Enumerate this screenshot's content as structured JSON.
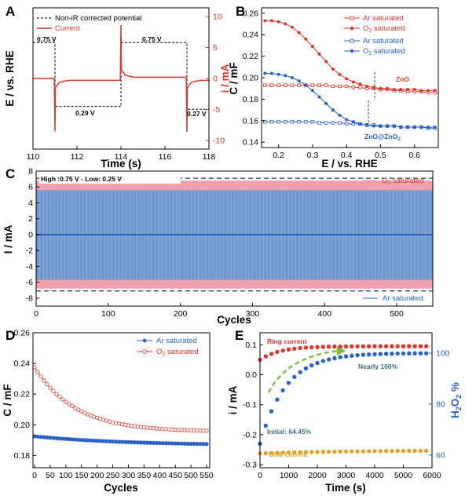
{
  "colors": {
    "red": "#d9382b",
    "blue": "#2a62c5",
    "orange": "#e0a426",
    "pink": "#f0a0ac",
    "steel": "#6e98cf",
    "green": "#7cbb3a",
    "teal": "#3c6e7c"
  },
  "chart_data": [
    {
      "panel": "A",
      "type": "line",
      "xlabel": "Time (s)",
      "ylabel": "E / vs. RHE",
      "ylabel_right": "i / mA",
      "xlim": [
        110,
        118
      ],
      "ylim_right": [
        -11,
        11
      ],
      "x_ticks": [
        "110",
        "112",
        "114",
        "116",
        "118"
      ],
      "y_right_ticks": [
        "10",
        "5",
        "0",
        "-5",
        "-10"
      ],
      "legend": [
        "Non-iR corrected potential",
        "Current"
      ],
      "annotations": [
        "0.75 V",
        "0.29 V",
        "0.75 V",
        "0.27 V"
      ],
      "series": [
        {
          "name": "Non-iR corrected potential",
          "style": "dashed",
          "x": [
            110,
            111,
            111,
            114,
            114,
            117,
            117,
            118
          ],
          "y": [
            0.75,
            0.75,
            0.29,
            0.29,
            0.75,
            0.75,
            0.27,
            0.27
          ]
        },
        {
          "name": "Current",
          "axis": "right",
          "x": [
            110,
            110.97,
            111.0,
            111.02,
            111.2,
            111.6,
            113.97,
            114.0,
            114.02,
            114.2,
            114.6,
            116.97,
            117.0,
            117.02,
            117.2,
            117.6,
            118
          ],
          "y": [
            0,
            0,
            -8.5,
            -1.5,
            -0.6,
            -0.3,
            -0.3,
            8.6,
            1.4,
            0.5,
            0.2,
            0.2,
            -8.6,
            -1.5,
            -0.6,
            -0.3,
            -0.3
          ]
        }
      ]
    },
    {
      "panel": "B",
      "type": "line",
      "xlabel": "E / vs. RHE",
      "ylabel": "C / mF",
      "xlim": [
        0.15,
        0.67
      ],
      "ylim": [
        0.135,
        0.265
      ],
      "x_ticks": [
        "0.2",
        "0.3",
        "0.4",
        "0.5",
        "0.6"
      ],
      "y_ticks": [
        "0.26",
        "0.24",
        "0.22",
        "0.20",
        "0.18",
        "0.16",
        "0.14"
      ],
      "legend_entries": [
        {
          "pre": "Ar saturated",
          "sub": "",
          "post": ""
        },
        {
          "pre": "O",
          "sub": "2",
          "post": " saturated"
        },
        {
          "pre": "Ar saturated",
          "sub": "",
          "post": ""
        },
        {
          "pre": "O",
          "sub": "2",
          "post": " saturated"
        }
      ],
      "label_zno": "ZnO",
      "label_core": {
        "pre": "ZnO@ZnO",
        "sub": "2",
        "post": ""
      },
      "x": [
        0.16,
        0.18,
        0.2,
        0.22,
        0.24,
        0.26,
        0.28,
        0.3,
        0.32,
        0.34,
        0.36,
        0.38,
        0.4,
        0.42,
        0.44,
        0.46,
        0.48,
        0.5,
        0.52,
        0.54,
        0.56,
        0.58,
        0.6,
        0.62,
        0.64,
        0.66
      ],
      "series": [
        {
          "name": "Ar saturated (ZnO)",
          "values": [
            0.193,
            0.193,
            0.193,
            0.193,
            0.193,
            0.193,
            0.193,
            0.193,
            0.193,
            0.193,
            0.192,
            0.192,
            0.192,
            0.191,
            0.191,
            0.19,
            0.19,
            0.189,
            0.189,
            0.188,
            0.188,
            0.187,
            0.187,
            0.187,
            0.186,
            0.186
          ]
        },
        {
          "name": "O2 saturated (ZnO)",
          "values": [
            0.253,
            0.253,
            0.252,
            0.25,
            0.247,
            0.242,
            0.236,
            0.229,
            0.222,
            0.215,
            0.208,
            0.203,
            0.199,
            0.196,
            0.194,
            0.192,
            0.191,
            0.19,
            0.19,
            0.189,
            0.189,
            0.189,
            0.189,
            0.188,
            0.188,
            0.188
          ]
        },
        {
          "name": "Ar saturated (ZnO@ZnO2)",
          "values": [
            0.159,
            0.159,
            0.159,
            0.159,
            0.159,
            0.159,
            0.159,
            0.159,
            0.158,
            0.158,
            0.158,
            0.158,
            0.157,
            0.157,
            0.157,
            0.156,
            0.156,
            0.155,
            0.155,
            0.155,
            0.154,
            0.154,
            0.154,
            0.154,
            0.153,
            0.153
          ]
        },
        {
          "name": "O2 saturated (ZnO@ZnO2)",
          "values": [
            0.204,
            0.204,
            0.203,
            0.202,
            0.2,
            0.197,
            0.193,
            0.188,
            0.182,
            0.176,
            0.17,
            0.165,
            0.161,
            0.159,
            0.157,
            0.156,
            0.155,
            0.155,
            0.155,
            0.155,
            0.154,
            0.154,
            0.154,
            0.154,
            0.154,
            0.154
          ]
        }
      ]
    },
    {
      "panel": "C",
      "type": "area",
      "xlabel": "Cycles",
      "ylabel": "I / mA",
      "xlim": [
        0,
        550
      ],
      "ylim": [
        -9,
        8
      ],
      "x_ticks": [
        "0",
        "100",
        "200",
        "300",
        "400",
        "500"
      ],
      "y_ticks": [
        "8",
        "6",
        "4",
        "2",
        "0",
        "-2",
        "-4",
        "-6",
        "-8"
      ],
      "note": "High :0.75 V  -  Low: 0.25 V",
      "legend_top": {
        "pre": "O",
        "sub": "2",
        "post": " saturated"
      },
      "legend_bottom": "Ar saturated",
      "series": [
        {
          "name": "O2 saturated",
          "upper": 6.8,
          "lower": -6.8
        },
        {
          "name": "Ar saturated",
          "upper": 5.6,
          "lower": -5.7
        }
      ],
      "dashed_levels": [
        7.1,
        -7.1
      ]
    },
    {
      "panel": "D",
      "type": "scatter",
      "xlabel": "Cycles",
      "ylabel": "C / mF",
      "xlim": [
        -5,
        560
      ],
      "ylim": [
        0.172,
        0.26
      ],
      "x_ticks": [
        "0",
        "50",
        "100",
        "150",
        "200",
        "250",
        "300",
        "350",
        "400",
        "450",
        "500",
        "550"
      ],
      "y_ticks": [
        "0.26",
        "0.24",
        "0.22",
        "0.20",
        "0.18"
      ],
      "legend_entries": [
        {
          "pre": "Ar saturated",
          "sub": "",
          "post": ""
        },
        {
          "pre": "O",
          "sub": "2",
          "post": " saturated"
        }
      ],
      "series": [
        {
          "name": "Ar saturated",
          "start": 0.1925,
          "end": 0.1865,
          "tau": 300
        },
        {
          "name": "O2 saturated",
          "start": 0.2375,
          "end": 0.1955,
          "tau": 130
        }
      ]
    },
    {
      "panel": "E",
      "type": "scatter",
      "xlabel": "Time (s)",
      "ylabel": "i / mA",
      "ylabel_right": {
        "pre": "H",
        "sub1": "2",
        "mid": "O",
        "sub2": "2",
        "post": " %"
      },
      "xlim": [
        0,
        6000
      ],
      "ylim": [
        -0.31,
        0.14
      ],
      "ylim_right": [
        55,
        108
      ],
      "x_ticks": [
        "0",
        "1000",
        "2000",
        "3000",
        "4000",
        "5000",
        "6000"
      ],
      "y_ticks": [
        "0.1",
        "0.0",
        "-0.1",
        "-0.2",
        "-0.3"
      ],
      "y_right_ticks": [
        "100",
        "80",
        "60"
      ],
      "labels": {
        "ring": "Ring current",
        "disk": "Disk current",
        "initial": "Initial: 64.45%",
        "final": "Nearly 100%"
      },
      "series": [
        {
          "name": "Ring current",
          "axis": "left",
          "start": 0.05,
          "end": 0.095,
          "tau": 700
        },
        {
          "name": "Disk current",
          "axis": "left",
          "start": -0.262,
          "end": -0.252,
          "tau": 3000
        },
        {
          "name": "H2O2 %",
          "axis": "right",
          "start": 64.45,
          "end": 100,
          "tau": 900
        }
      ]
    }
  ]
}
